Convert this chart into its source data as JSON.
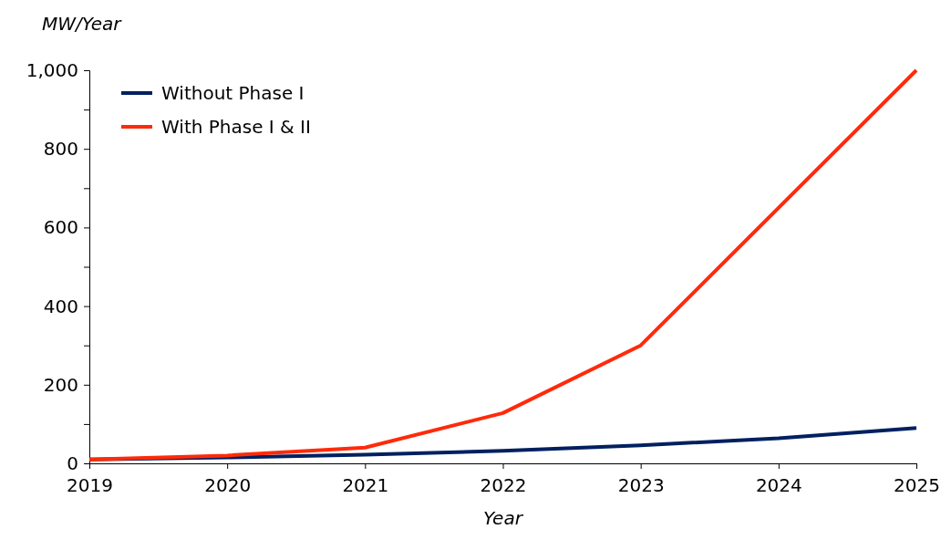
{
  "chart_data": {
    "type": "line",
    "xlabel": "Year",
    "ylabel": "MW/Year",
    "x": [
      2019,
      2020,
      2021,
      2022,
      2023,
      2024,
      2025
    ],
    "series": [
      {
        "name": "Without Phase I",
        "color": "#002060",
        "values": [
          10,
          15,
          22,
          32,
          46,
          64,
          90
        ]
      },
      {
        "name": "With Phase I & II",
        "color": "#ff2a0a",
        "values": [
          10,
          20,
          40,
          128,
          300,
          650,
          1000
        ]
      }
    ],
    "xlim": [
      2019,
      2025
    ],
    "xticks": [
      2019,
      2020,
      2021,
      2022,
      2023,
      2024,
      2025
    ],
    "ylim": [
      0,
      1000
    ],
    "yticks": [
      0,
      {
        "value": 100,
        "label": null
      },
      200,
      {
        "value": 300,
        "label": null
      },
      400,
      {
        "value": 500,
        "label": null
      },
      600,
      {
        "value": 700,
        "label": null
      },
      800,
      {
        "value": 900,
        "label": null
      },
      {
        "value": 1000,
        "label": "1,000"
      }
    ],
    "grid": false,
    "legend": "top left",
    "marker": "none",
    "line_style": "solid"
  }
}
